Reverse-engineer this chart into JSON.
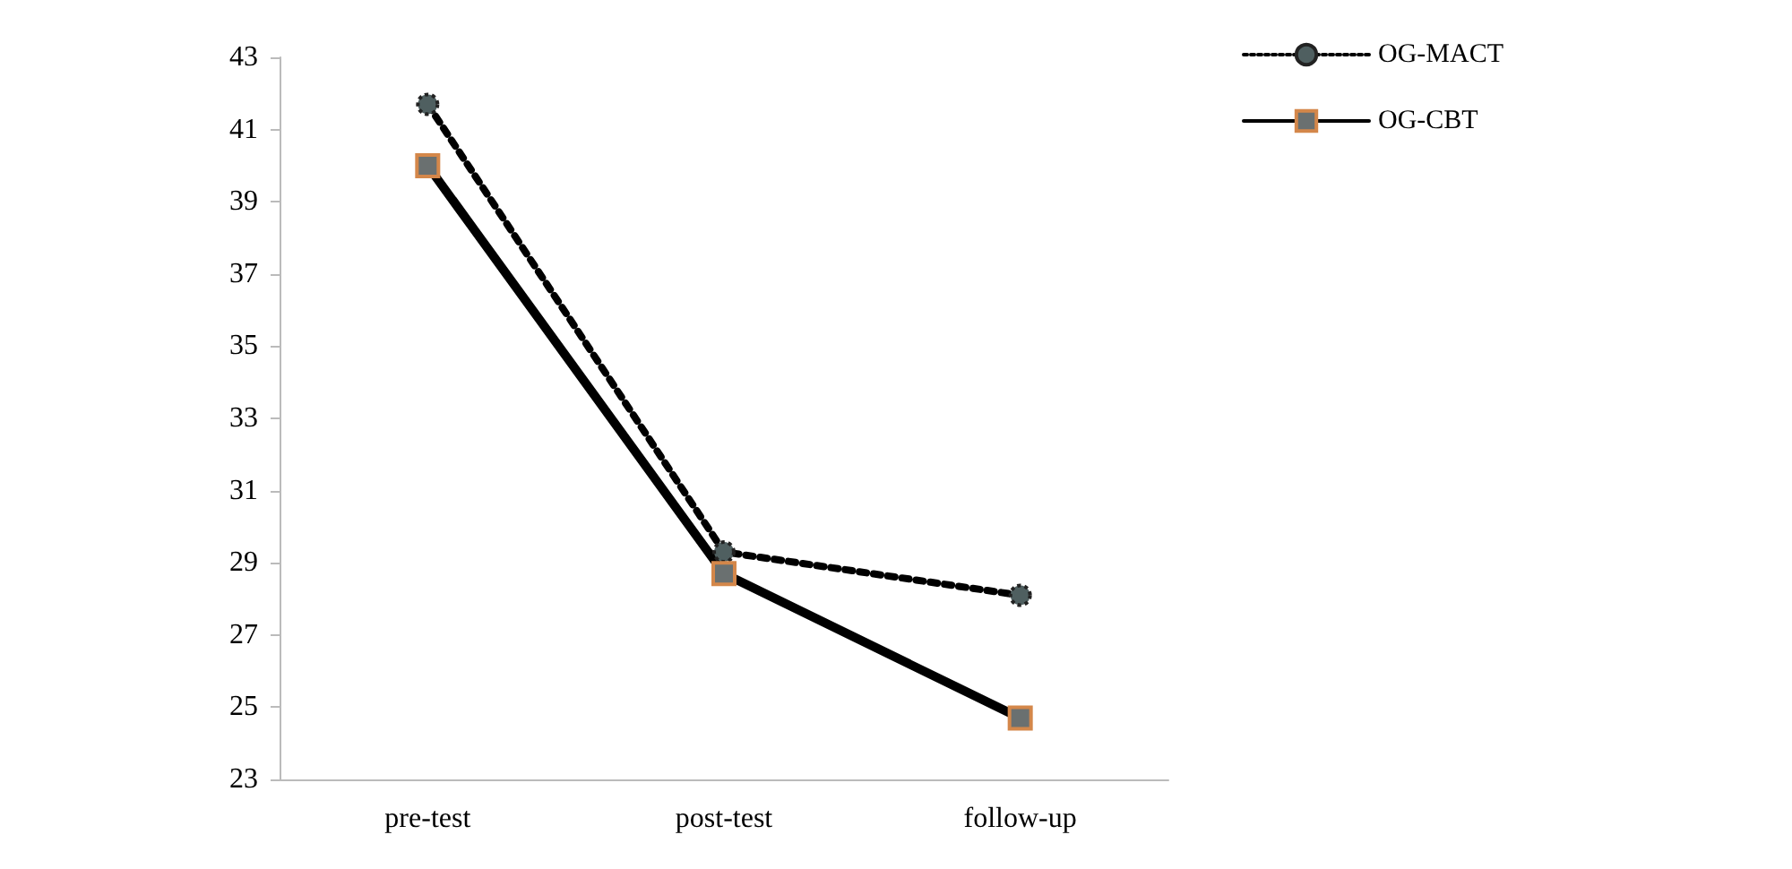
{
  "chart_data": {
    "type": "line",
    "categories": [
      "pre-test",
      "post-test",
      "follow-up"
    ],
    "series": [
      {
        "name": "OG-MACT",
        "color": "#000000",
        "values": [
          41.7,
          29.3,
          28.1
        ],
        "line_style": "dotted",
        "marker": "circle"
      },
      {
        "name": "OG-CBT",
        "color": "#000000",
        "values": [
          40.0,
          28.7,
          24.7
        ],
        "line_style": "solid",
        "marker": "square"
      }
    ],
    "ylim": [
      23,
      43
    ],
    "yticks": [
      23,
      25,
      27,
      29,
      31,
      33,
      35,
      37,
      39,
      41,
      43
    ],
    "grid": false,
    "legend": "top right"
  }
}
